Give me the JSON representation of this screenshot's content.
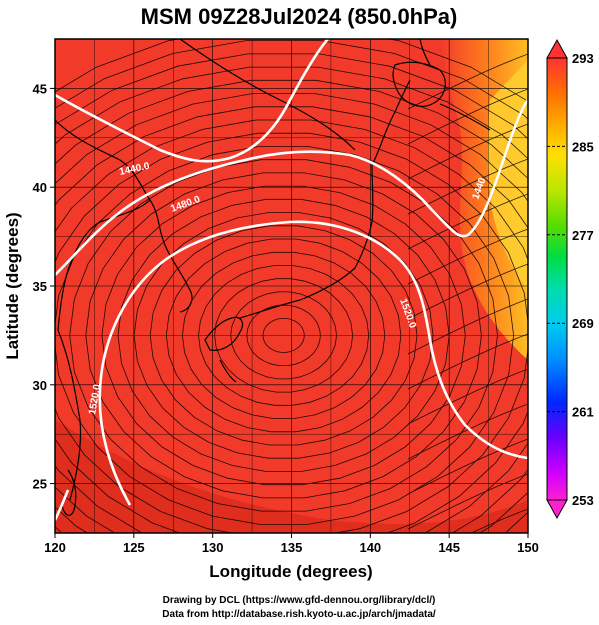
{
  "title": "MSM 09Z28Jul2024 (850.0hPa)",
  "xlabel": "Longitude (degrees)",
  "ylabel": "Latitude  (degrees)",
  "x_ticks": [
    "120",
    "125",
    "130",
    "135",
    "140",
    "145",
    "150"
  ],
  "y_ticks": [
    "25",
    "30",
    "35",
    "40",
    "45"
  ],
  "colorbar": {
    "ticks": [
      "293",
      "285",
      "277",
      "269",
      "261",
      "253"
    ],
    "min": 253,
    "max": 293,
    "colors": [
      "#ff1fd0",
      "#d000ff",
      "#6a00ff",
      "#0026ff",
      "#0090ff",
      "#00ccee",
      "#00ddaa",
      "#00dd44",
      "#55dd00",
      "#bbe600",
      "#ffe000",
      "#ffaa00",
      "#ff7000",
      "#ff3a1a",
      "#ff3333"
    ]
  },
  "contour_labels": [
    "1440.0",
    "1480.0",
    "1520.0",
    "1520.0",
    "1440"
  ],
  "credits": {
    "line1": "Drawing by DCL (https://www.gfd-dennou.org/library/dcl/)",
    "line2": "Data from http://database.rish.kyoto-u.ac.jp/arch/jmadata/"
  },
  "map": {
    "lon_range": [
      120,
      150
    ],
    "lat_range": [
      22.5,
      47.5
    ],
    "field_color": "#f13a2a",
    "field_color_dark": "#d8261c",
    "field_color_east": "#ffb020",
    "contour_color": "#ffffff",
    "coast_color": "#000000",
    "stream_color": "#000000"
  }
}
